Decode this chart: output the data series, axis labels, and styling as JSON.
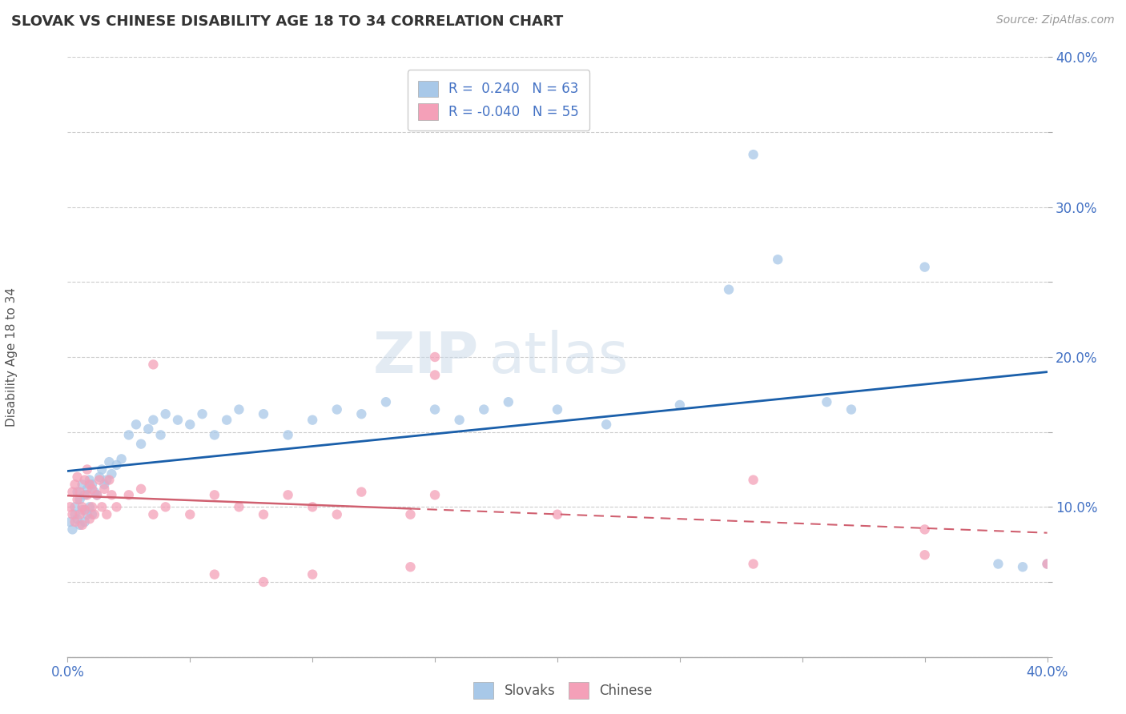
{
  "title": "SLOVAK VS CHINESE DISABILITY AGE 18 TO 34 CORRELATION CHART",
  "source": "Source: ZipAtlas.com",
  "ylabel": "Disability Age 18 to 34",
  "xlim": [
    0.0,
    0.4
  ],
  "ylim": [
    0.0,
    0.4
  ],
  "xticks": [
    0.0,
    0.05,
    0.1,
    0.15,
    0.2,
    0.25,
    0.3,
    0.35,
    0.4
  ],
  "yticks": [
    0.0,
    0.05,
    0.1,
    0.15,
    0.2,
    0.25,
    0.3,
    0.35,
    0.4
  ],
  "slovak_R": 0.24,
  "slovak_N": 63,
  "chinese_R": -0.04,
  "chinese_N": 55,
  "slovak_color": "#a8c8e8",
  "chinese_color": "#f4a0b8",
  "slovak_line_color": "#1a5faa",
  "chinese_line_color": "#d06070",
  "watermark": "ZIPatlas",
  "background_color": "#ffffff",
  "slovak_x": [
    0.001,
    0.002,
    0.003,
    0.003,
    0.004,
    0.004,
    0.005,
    0.005,
    0.006,
    0.006,
    0.007,
    0.007,
    0.008,
    0.008,
    0.009,
    0.009,
    0.01,
    0.01,
    0.011,
    0.012,
    0.013,
    0.014,
    0.015,
    0.016,
    0.017,
    0.018,
    0.02,
    0.022,
    0.025,
    0.028,
    0.03,
    0.033,
    0.035,
    0.038,
    0.04,
    0.045,
    0.05,
    0.055,
    0.06,
    0.065,
    0.07,
    0.08,
    0.09,
    0.1,
    0.11,
    0.12,
    0.13,
    0.15,
    0.16,
    0.17,
    0.18,
    0.2,
    0.22,
    0.25,
    0.28,
    0.31,
    0.32,
    0.35,
    0.38,
    0.4,
    0.27,
    0.29,
    0.39
  ],
  "slovak_y": [
    0.09,
    0.085,
    0.095,
    0.1,
    0.092,
    0.11,
    0.088,
    0.105,
    0.098,
    0.115,
    0.09,
    0.108,
    0.095,
    0.112,
    0.1,
    0.118,
    0.095,
    0.115,
    0.11,
    0.108,
    0.12,
    0.125,
    0.115,
    0.118,
    0.13,
    0.122,
    0.128,
    0.132,
    0.148,
    0.155,
    0.142,
    0.152,
    0.158,
    0.148,
    0.162,
    0.158,
    0.155,
    0.162,
    0.148,
    0.158,
    0.165,
    0.162,
    0.148,
    0.158,
    0.165,
    0.162,
    0.17,
    0.165,
    0.158,
    0.165,
    0.17,
    0.165,
    0.155,
    0.168,
    0.335,
    0.17,
    0.165,
    0.26,
    0.062,
    0.062,
    0.245,
    0.265,
    0.06
  ],
  "chinese_x": [
    0.001,
    0.002,
    0.002,
    0.003,
    0.003,
    0.004,
    0.004,
    0.005,
    0.005,
    0.006,
    0.006,
    0.007,
    0.007,
    0.008,
    0.008,
    0.009,
    0.009,
    0.01,
    0.01,
    0.011,
    0.012,
    0.013,
    0.014,
    0.015,
    0.016,
    0.017,
    0.018,
    0.02,
    0.025,
    0.03,
    0.035,
    0.04,
    0.05,
    0.06,
    0.07,
    0.08,
    0.09,
    0.1,
    0.11,
    0.12,
    0.14,
    0.15,
    0.2,
    0.28,
    0.35,
    0.4,
    0.15,
    0.15,
    0.035,
    0.06,
    0.1,
    0.28,
    0.35,
    0.14,
    0.08
  ],
  "chinese_y": [
    0.1,
    0.11,
    0.095,
    0.115,
    0.09,
    0.105,
    0.12,
    0.095,
    0.11,
    0.1,
    0.088,
    0.118,
    0.098,
    0.108,
    0.125,
    0.092,
    0.115,
    0.1,
    0.112,
    0.095,
    0.108,
    0.118,
    0.1,
    0.112,
    0.095,
    0.118,
    0.108,
    0.1,
    0.108,
    0.112,
    0.095,
    0.1,
    0.095,
    0.108,
    0.1,
    0.095,
    0.108,
    0.1,
    0.095,
    0.11,
    0.095,
    0.108,
    0.095,
    0.062,
    0.068,
    0.062,
    0.2,
    0.188,
    0.195,
    0.055,
    0.055,
    0.118,
    0.085,
    0.06,
    0.05
  ]
}
